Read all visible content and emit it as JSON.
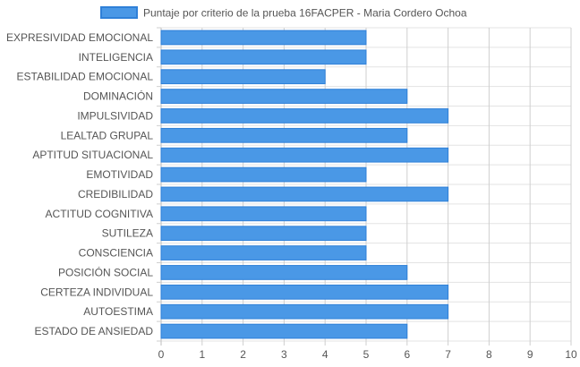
{
  "chart_data": {
    "type": "bar",
    "orientation": "horizontal",
    "legend": {
      "position": "top-center"
    },
    "series": [
      {
        "name": "Puntaje por criterio de la prueba 16FACPER - Maria Cordero Ochoa",
        "color": "#4a98e6",
        "border_color": "#2f80d8",
        "values": [
          5,
          5,
          4,
          6,
          7,
          6,
          7,
          5,
          7,
          5,
          5,
          5,
          6,
          7,
          7,
          6
        ]
      }
    ],
    "categories": [
      "EXPRESIVIDAD EMOCIONAL",
      "INTELIGENCIA",
      "ESTABILIDAD EMOCIONAL",
      "DOMINACIÓN",
      "IMPULSIVIDAD",
      "LEALTAD GRUPAL",
      "APTITUD SITUACIONAL",
      "EMOTIVIDAD",
      "CREDIBILIDAD",
      "ACTITUD COGNITIVA",
      "SUTILEZA",
      "CONSCIENCIA",
      "POSICIÓN SOCIAL",
      "CERTEZA INDIVIDUAL",
      "AUTOESTIMA",
      "ESTADO DE ANSIEDAD"
    ],
    "xlim": [
      0,
      10
    ],
    "xticks": [
      "0",
      "1",
      "2",
      "3",
      "4",
      "5",
      "6",
      "7",
      "8",
      "9",
      "10"
    ],
    "grid": true
  }
}
